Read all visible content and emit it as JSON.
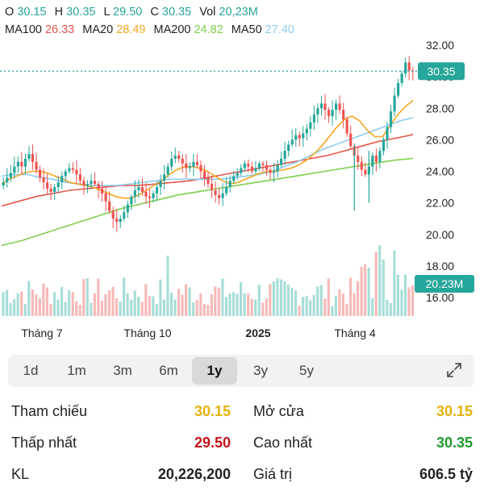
{
  "ohlc": {
    "o_label": "O",
    "o": "30.15",
    "h_label": "H",
    "h": "30.35",
    "l_label": "L",
    "l": "29.50",
    "c_label": "C",
    "c": "30.35",
    "vol_label": "Vol",
    "vol": "20,23M"
  },
  "ma": [
    {
      "label": "MA100",
      "value": "26.33",
      "color": "#e4574b"
    },
    {
      "label": "MA20",
      "value": "28.49",
      "color": "#f5a623"
    },
    {
      "label": "MA200",
      "value": "24.82",
      "color": "#7ed04d"
    },
    {
      "label": "MA50",
      "value": "27.40",
      "color": "#8fcdf0"
    }
  ],
  "colors": {
    "up": "#26a69a",
    "down": "#ef5350",
    "last_price_line": "#26a69a"
  },
  "chart_data": {
    "type": "candlestick",
    "y_ticks": [
      "32.00",
      "30.00",
      "28.00",
      "26.00",
      "24.00",
      "22.00",
      "20.00",
      "18.00",
      "16.00"
    ],
    "ylim": [
      15.2,
      32.2
    ],
    "x_labels": [
      "Tháng 7",
      "Tháng 10",
      "2025",
      "Tháng 4"
    ],
    "last_price": "30.35",
    "last_volume": "20.23M",
    "close_series": [
      23.3,
      23.6,
      23.9,
      24.3,
      24.6,
      24.3,
      24.8,
      25.1,
      24.6,
      24.1,
      23.6,
      23.3,
      22.9,
      22.7,
      23.0,
      23.3,
      23.7,
      24.0,
      24.2,
      24.1,
      23.8,
      23.4,
      23.1,
      23.2,
      23.4,
      23.2,
      22.9,
      22.6,
      22.1,
      21.5,
      21.0,
      20.8,
      21.0,
      21.4,
      21.9,
      22.4,
      22.8,
      23.0,
      22.7,
      22.4,
      22.3,
      22.6,
      23.0,
      23.4,
      23.8,
      24.3,
      24.8,
      25.0,
      24.8,
      24.5,
      24.2,
      24.3,
      24.6,
      24.4,
      24.0,
      23.6,
      23.2,
      22.8,
      22.5,
      22.3,
      22.6,
      23.0,
      23.4,
      23.7,
      23.9,
      24.2,
      24.5,
      24.3,
      24.0,
      24.2,
      24.5,
      24.4,
      24.1,
      23.9,
      24.0,
      24.4,
      24.8,
      25.3,
      25.7,
      26.0,
      26.3,
      26.1,
      26.4,
      26.7,
      27.1,
      27.6,
      28.0,
      28.3,
      27.9,
      27.5,
      27.9,
      28.3,
      27.9,
      27.3,
      26.4,
      25.6,
      25.0,
      24.6,
      24.1,
      23.8,
      24.3,
      25.0,
      24.6,
      25.3,
      26.0,
      26.8,
      27.8,
      28.8,
      29.6,
      30.2,
      30.9,
      30.4,
      30.35
    ],
    "ma20_series": [
      23.2,
      23.5,
      23.7,
      23.9,
      24.0,
      24.0,
      23.9,
      23.7,
      23.5,
      23.3,
      23.2,
      23.1,
      23.0,
      22.8,
      22.6,
      22.4,
      22.3,
      22.3,
      22.5,
      22.8,
      23.1,
      23.4,
      23.8,
      24.1,
      24.3,
      24.3,
      24.2,
      24.0,
      23.7,
      23.4,
      23.2,
      23.3,
      23.5,
      23.7,
      23.9,
      24.0,
      24.0,
      24.1,
      24.2,
      24.4,
      24.7,
      25.1,
      25.6,
      26.2,
      26.8,
      27.3,
      27.5,
      27.2,
      26.6,
      26.2,
      26.2,
      26.9,
      27.6,
      28.1,
      28.5
    ],
    "ma50_series": [
      23.7,
      23.8,
      23.8,
      23.6,
      23.5,
      23.3,
      23.2,
      23.1,
      23.1,
      23.1,
      23.2,
      23.3,
      23.4,
      23.5,
      23.5,
      23.5,
      23.5,
      23.5,
      23.6,
      23.7,
      23.8,
      24.0,
      24.3,
      24.6,
      25.0,
      25.4,
      25.7,
      26.0,
      26.3,
      26.6,
      26.9,
      27.2,
      27.4
    ],
    "ma100_series": [
      21.8,
      22.1,
      22.4,
      22.6,
      22.8,
      22.9,
      23.0,
      23.1,
      23.1,
      23.2,
      23.3,
      23.4,
      23.6,
      23.8,
      24.0,
      24.2,
      24.4,
      24.6,
      24.8,
      25.0,
      25.3,
      25.6,
      25.9,
      26.1,
      26.33
    ],
    "ma200_series": [
      19.3,
      19.6,
      20.0,
      20.4,
      20.8,
      21.2,
      21.6,
      21.9,
      22.2,
      22.5,
      22.7,
      22.9,
      23.1,
      23.3,
      23.5,
      23.7,
      23.9,
      24.1,
      24.3,
      24.5,
      24.7,
      24.82
    ]
  },
  "range_buttons": [
    "1d",
    "1m",
    "3m",
    "6m",
    "1y",
    "3y",
    "5y"
  ],
  "range_active": "1y",
  "stats": {
    "tham_chieu_label": "Tham chiếu",
    "tham_chieu": "30.15",
    "mo_cua_label": "Mở cửa",
    "mo_cua": "30.15",
    "thap_nhat_label": "Thấp nhất",
    "thap_nhat": "29.50",
    "cao_nhat_label": "Cao nhất",
    "cao_nhat": "30.35",
    "kl_label": "KL",
    "kl": "20,226,200",
    "gia_tri_label": "Giá trị",
    "gia_tri": "606.5 tỷ"
  }
}
